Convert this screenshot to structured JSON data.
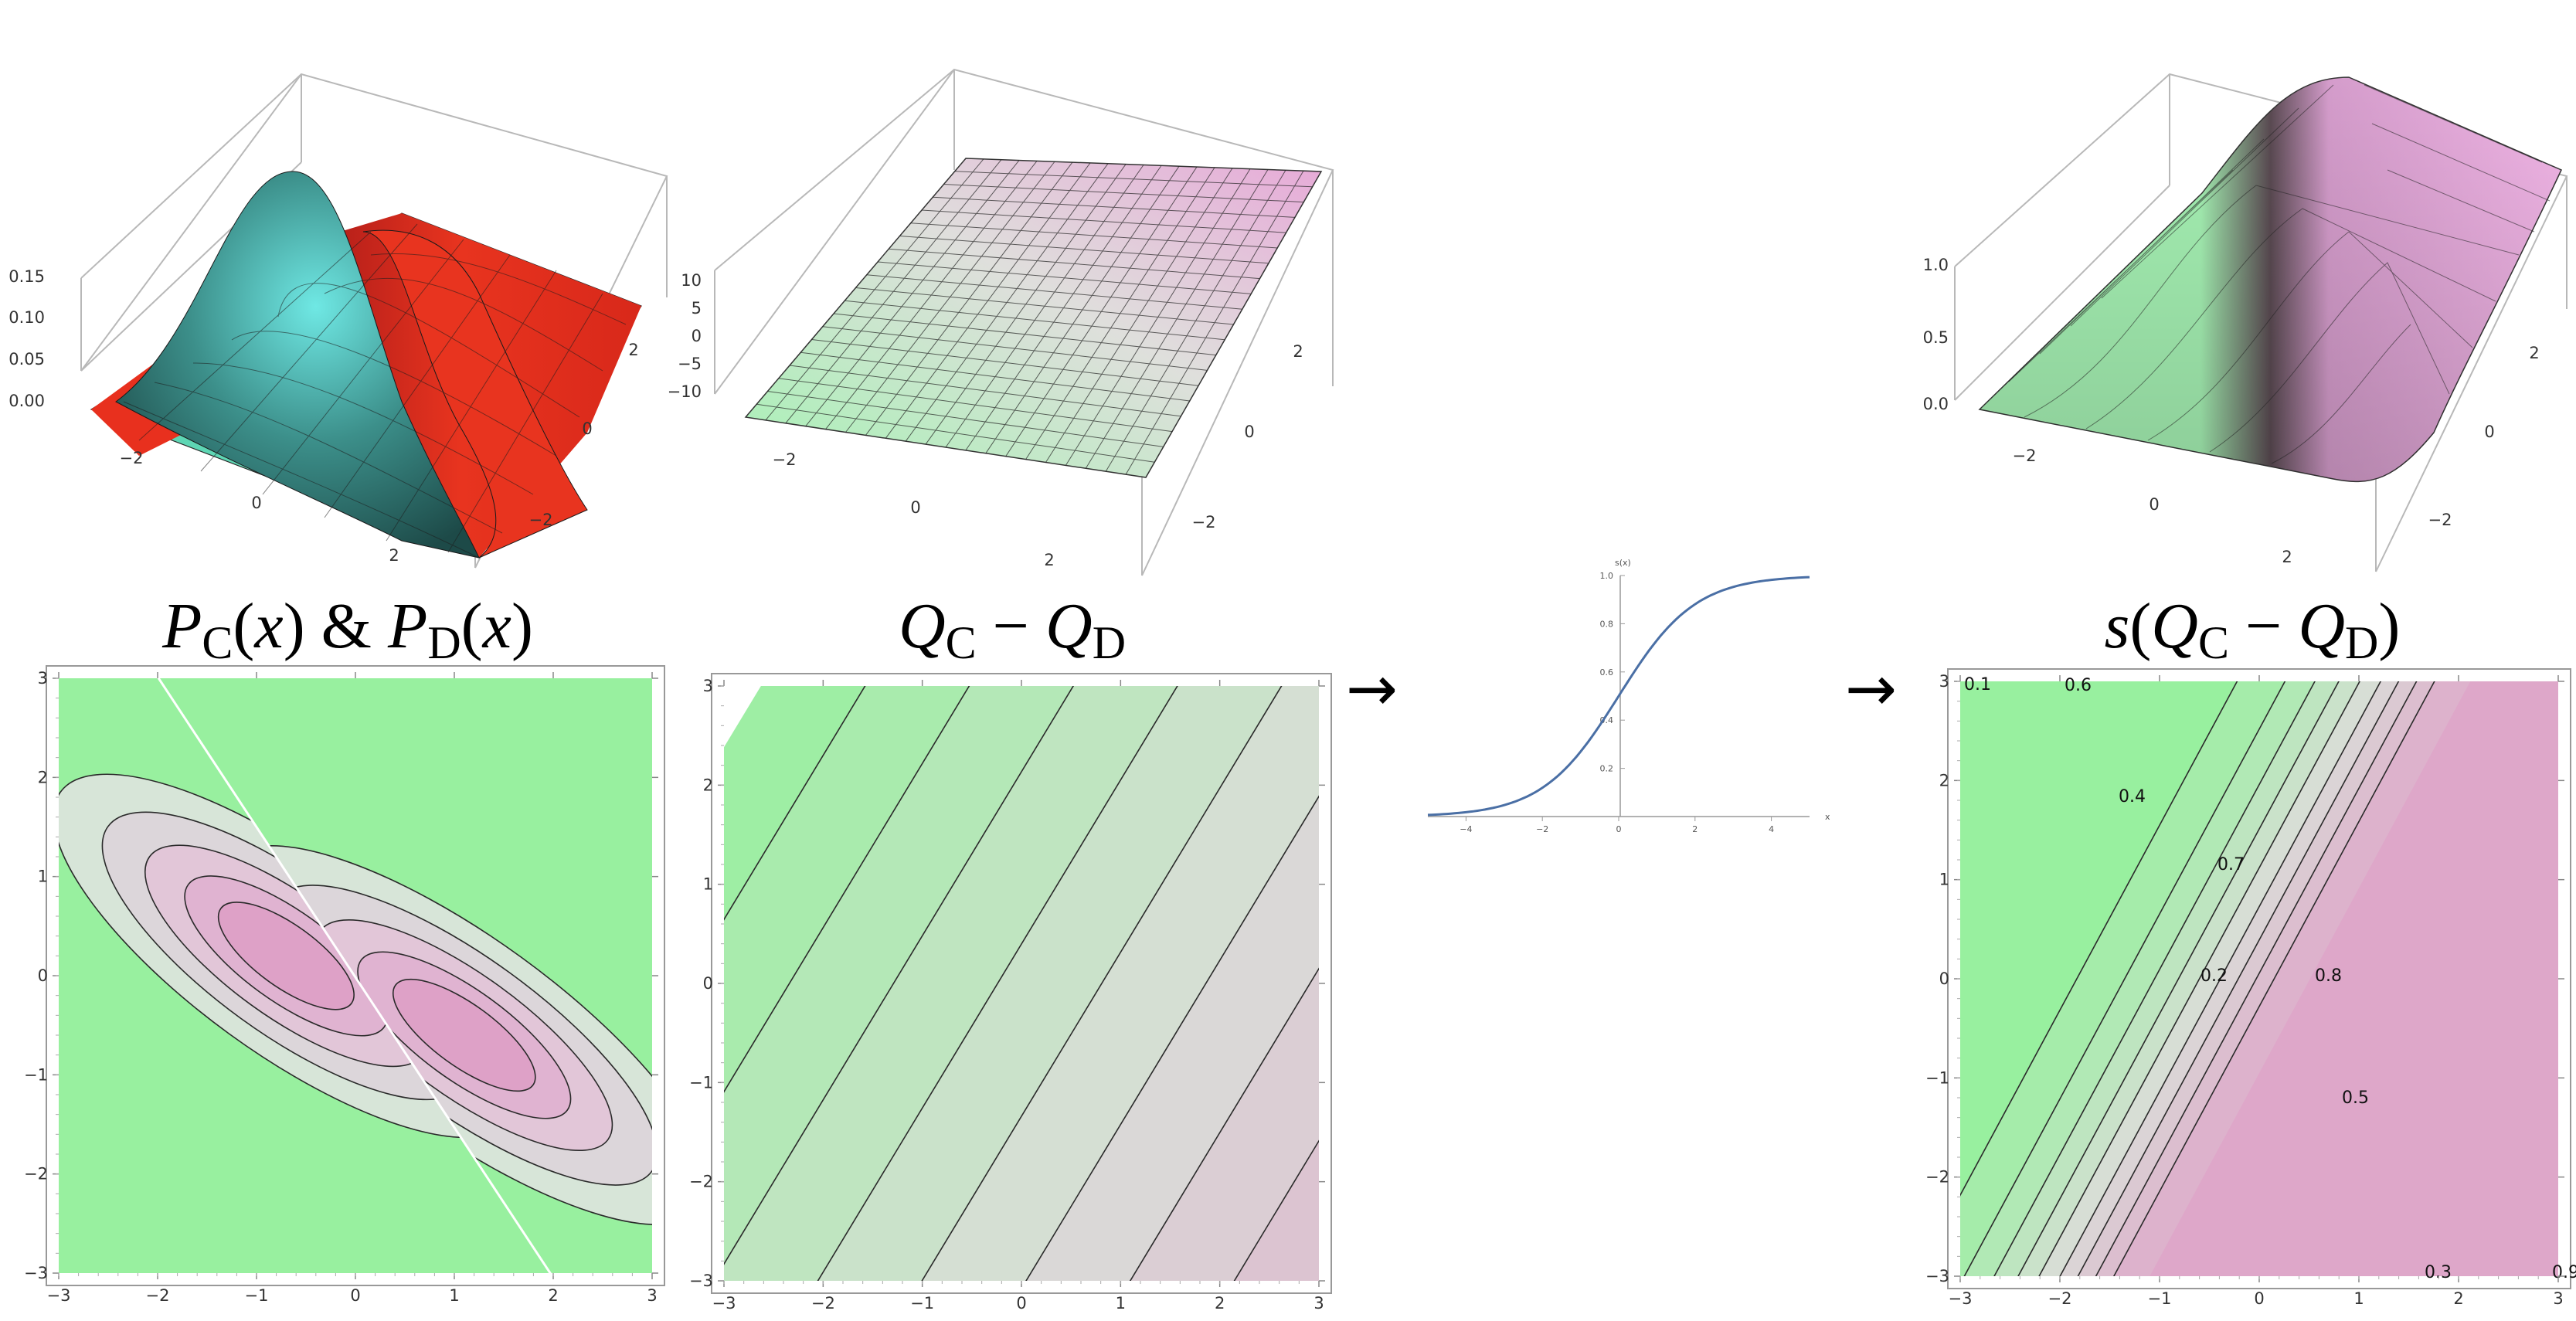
{
  "titles": {
    "densities": "P_C(x) & P_D(x)",
    "difference": "Q_C − Q_D",
    "sigmoid": "s(Q_C − Q_D)"
  },
  "arrows": [
    "→",
    "→"
  ],
  "colors": {
    "green": "#98f09f",
    "pink": "#dea1c7",
    "surface_red": "#e8301e",
    "surface_teal": "#5ed6b4",
    "sigmoid_line": "#4a6fa5"
  },
  "panels": {
    "surface_densities": {
      "z_ticks": [
        "0.15",
        "0.10",
        "0.05",
        "0.00"
      ],
      "x_ticks": [
        "−2",
        "0",
        "2"
      ],
      "y_ticks": [
        "2",
        "0",
        "−2"
      ]
    },
    "surface_difference": {
      "z_ticks": [
        "10",
        "5",
        "0",
        "−5",
        "−10"
      ],
      "x_ticks": [
        "−2",
        "0",
        "2"
      ],
      "y_ticks": [
        "2",
        "0",
        "−2"
      ]
    },
    "surface_sigmoid": {
      "z_ticks": [
        "1.0",
        "0.5",
        "0.0"
      ],
      "x_ticks": [
        "−2",
        "0",
        "2"
      ],
      "y_ticks": [
        "2",
        "0",
        "−2"
      ]
    },
    "contour_axes": {
      "x_ticks": [
        "−3",
        "−2",
        "−1",
        "0",
        "1",
        "2",
        "3"
      ],
      "y_ticks": [
        "3",
        "2",
        "1",
        "0",
        "−1",
        "−2",
        "−3"
      ]
    },
    "contour_sigmoid_labels": [
      "0.1",
      "0.6",
      "0.4",
      "0.7",
      "0.2",
      "0.8",
      "0.5",
      "0.3",
      "0.9"
    ],
    "sigmoid_plot": {
      "ylabel": "s(x)",
      "xlabel": "x",
      "x_ticks": [
        "−4",
        "−2",
        "0",
        "2",
        "4"
      ],
      "y_ticks": [
        "0.2",
        "0.4",
        "0.6",
        "0.8",
        "1.0"
      ]
    }
  },
  "chart_data": {
    "type": "line",
    "title": "",
    "xlabel": "x",
    "ylabel": "s(x)",
    "xlim": [
      -5,
      5
    ],
    "ylim": [
      0,
      1
    ],
    "series": [
      {
        "x": [
          -5,
          -4,
          -3,
          -2,
          -1,
          0,
          1,
          2,
          3,
          4,
          5
        ],
        "values": [
          0.007,
          0.018,
          0.047,
          0.119,
          0.269,
          0.5,
          0.731,
          0.881,
          0.953,
          0.982,
          0.993
        ]
      }
    ]
  }
}
